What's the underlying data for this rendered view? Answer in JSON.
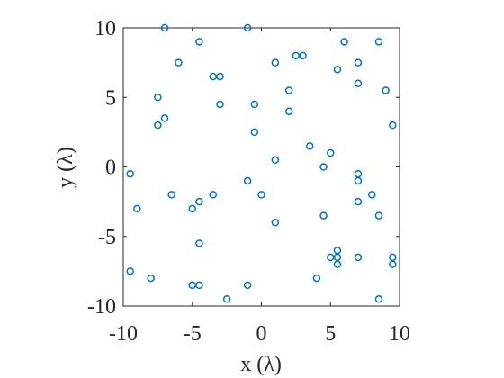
{
  "chart_data": {
    "type": "scatter",
    "xlabel": "x (λ)",
    "ylabel": "y (λ)",
    "x": [
      -7,
      -1,
      -4.5,
      6,
      8.5,
      -6,
      1,
      2.5,
      3,
      5.5,
      7,
      -3.5,
      -3,
      7,
      -7.5,
      -7,
      -7.5,
      -3,
      -0.5,
      2,
      2,
      9,
      9.5,
      -0.5,
      3.5,
      5,
      1,
      4.5,
      -9.5,
      7,
      7,
      -1,
      -9,
      -6.5,
      -3.5,
      0,
      8,
      -5,
      -4.5,
      7,
      1,
      4.5,
      8.5,
      -4.5,
      -9.5,
      -8,
      -5,
      -4.5,
      -1,
      -2.5,
      4,
      5,
      5.5,
      5.5,
      5.5,
      7,
      9.5,
      9.5,
      8.5
    ],
    "values": [
      10,
      10,
      9,
      9,
      9,
      7.5,
      7.5,
      8,
      8,
      7,
      7.5,
      6.5,
      6.5,
      6,
      5,
      3.5,
      3,
      4.5,
      4.5,
      5.5,
      4,
      5.5,
      3,
      2.5,
      1.5,
      1,
      0.5,
      0,
      -0.5,
      -0.5,
      -1,
      -1,
      -3,
      -2,
      -2,
      -2,
      -2,
      -3,
      -2.5,
      -2.5,
      -4,
      -3.5,
      -3.5,
      -5.5,
      -7.5,
      -8,
      -8.5,
      -8.5,
      -8.5,
      -9.5,
      -8,
      -6.5,
      -6,
      -6.5,
      -7,
      -6.5,
      -6.5,
      -7,
      -9.5
    ],
    "color": "#0072bd",
    "xlim": [
      -10,
      10
    ],
    "ylim": [
      -10,
      10
    ],
    "xticks": [
      -10,
      -5,
      0,
      5,
      10
    ],
    "yticks": [
      -10,
      -5,
      0,
      5,
      10
    ]
  }
}
